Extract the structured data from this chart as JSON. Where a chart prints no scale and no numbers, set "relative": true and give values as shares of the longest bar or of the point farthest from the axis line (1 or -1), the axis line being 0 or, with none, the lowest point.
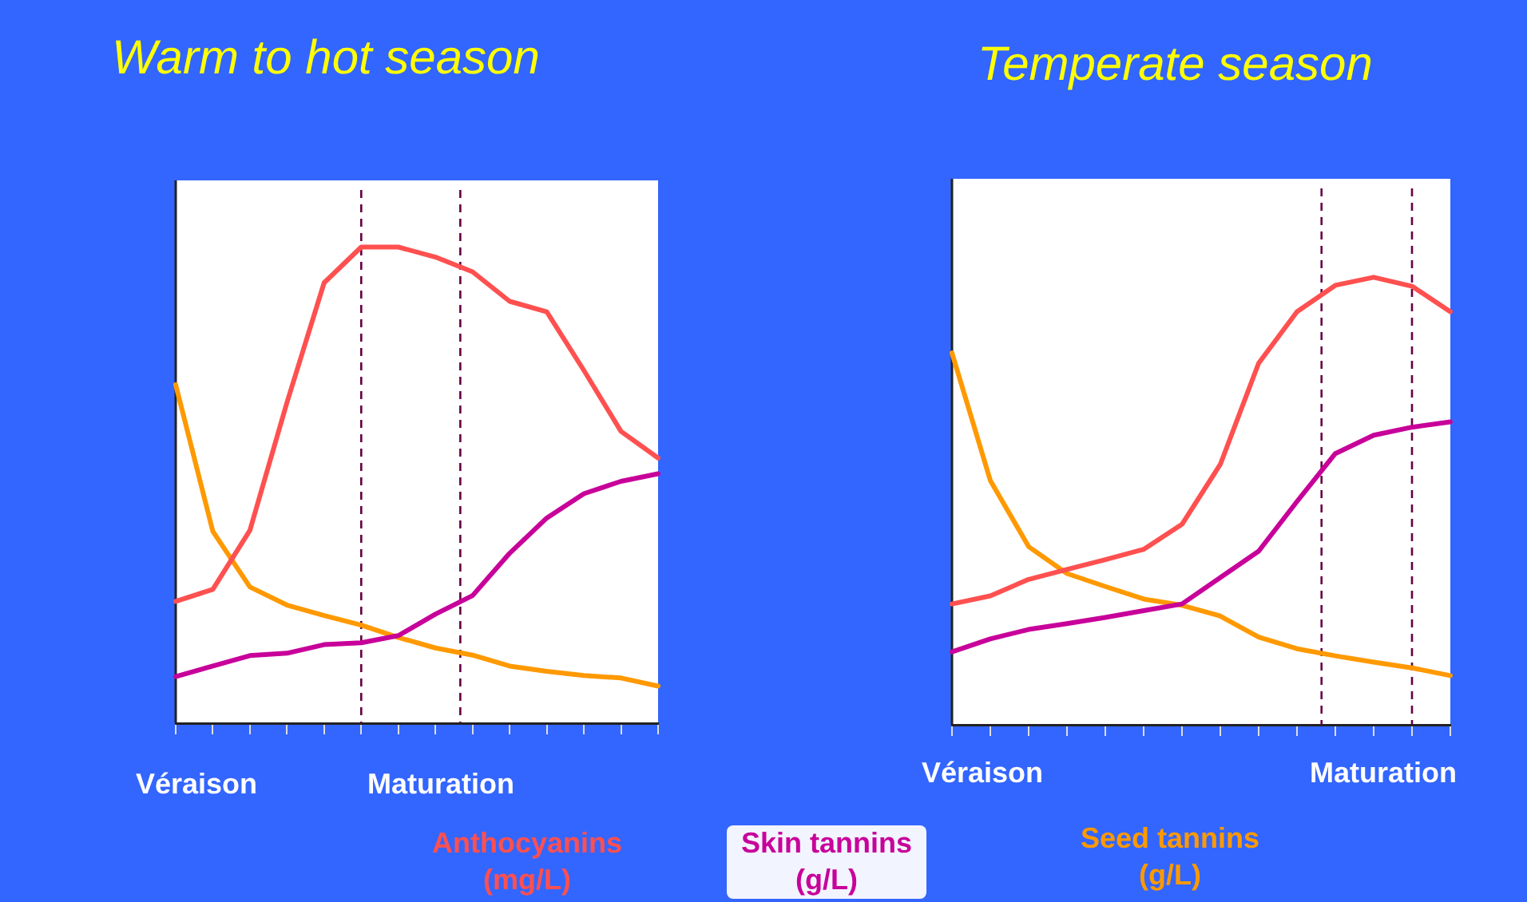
{
  "chart_data": [
    {
      "type": "line",
      "title": "Warm to hot season",
      "relative": true,
      "legend": "bottom",
      "grid": false,
      "line_style": "solid",
      "marker": "none",
      "categories": [
        null,
        null,
        null,
        null,
        null,
        null,
        null,
        null,
        null,
        null,
        null,
        null,
        null,
        null
      ],
      "series": [
        {
          "name": "Anthocyanins (mg/L)",
          "color": "#ff5050",
          "values": [
            0.256,
            0.281,
            0.405,
            0.674,
            0.925,
            1,
            1,
            0.979,
            0.948,
            0.886,
            0.864,
            0.741,
            0.613,
            0.557
          ]
        },
        {
          "name": "Skin tannins (g/L)",
          "color": "#c8009a",
          "values": [
            0.098,
            0.12,
            0.142,
            0.147,
            0.165,
            0.169,
            0.184,
            0.229,
            0.268,
            0.357,
            0.431,
            0.482,
            0.508,
            0.524
          ]
        },
        {
          "name": "Seed tannins (g/L)",
          "color": "#ff9900",
          "values": [
            0.711,
            0.403,
            0.286,
            0.248,
            0.226,
            0.206,
            0.18,
            0.158,
            0.143,
            0.12,
            0.109,
            0.1,
            0.095,
            0.078
          ]
        }
      ],
      "annotations": [
        "Véraison",
        "Maturation"
      ]
    },
    {
      "type": "line",
      "title": "Temperate season",
      "relative": true,
      "grid": false,
      "line_style": "solid",
      "marker": "none",
      "categories": [
        null,
        null,
        null,
        null,
        null,
        null,
        null,
        null,
        null,
        null,
        null,
        null,
        null,
        null
      ],
      "series": [
        {
          "color": "#ff5050",
          "values": [
            0.27,
            0.288,
            0.325,
            0.347,
            0.369,
            0.392,
            0.448,
            0.582,
            0.808,
            0.923,
            0.982,
            1,
            0.98,
            0.923
          ]
        },
        {
          "color": "#c8009a",
          "values": [
            0.163,
            0.192,
            0.213,
            0.226,
            0.24,
            0.255,
            0.27,
            0.329,
            0.388,
            0.499,
            0.606,
            0.647,
            0.665,
            0.677
          ]
        },
        {
          "color": "#ff9900",
          "values": [
            0.831,
            0.546,
            0.398,
            0.338,
            0.309,
            0.281,
            0.267,
            0.243,
            0.196,
            0.17,
            0.154,
            0.14,
            0.127,
            0.11
          ]
        }
      ],
      "annotations": [
        "Véraison",
        "Maturation"
      ]
    }
  ]
}
